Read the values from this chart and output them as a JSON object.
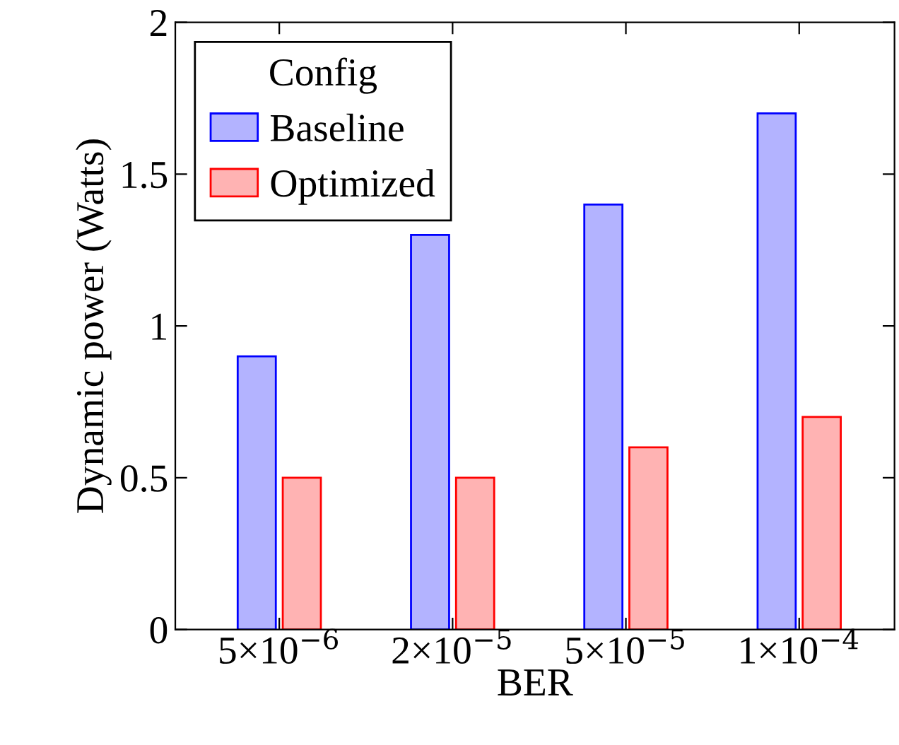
{
  "chart_data": {
    "type": "bar",
    "xlabel": "BER",
    "ylabel": "Dynamic power (Watts)",
    "legend_title": "Config",
    "categories": [
      "5×10$^{−6}$",
      "2×10$^{−5}$",
      "5×10$^{−5}$",
      "1×10$^{−4}$"
    ],
    "series": [
      {
        "name": "Baseline",
        "color": "#b3b3ff",
        "values": [
          0.9,
          1.3,
          1.4,
          1.7
        ]
      },
      {
        "name": "Optimized",
        "color": "#ffb3b3",
        "values": [
          0.5,
          0.5,
          0.6,
          0.7
        ]
      }
    ],
    "ylim": [
      0,
      2
    ],
    "yticks": [
      0,
      0.5,
      1,
      1.5,
      2
    ],
    "grid": false,
    "legend": "top left"
  }
}
